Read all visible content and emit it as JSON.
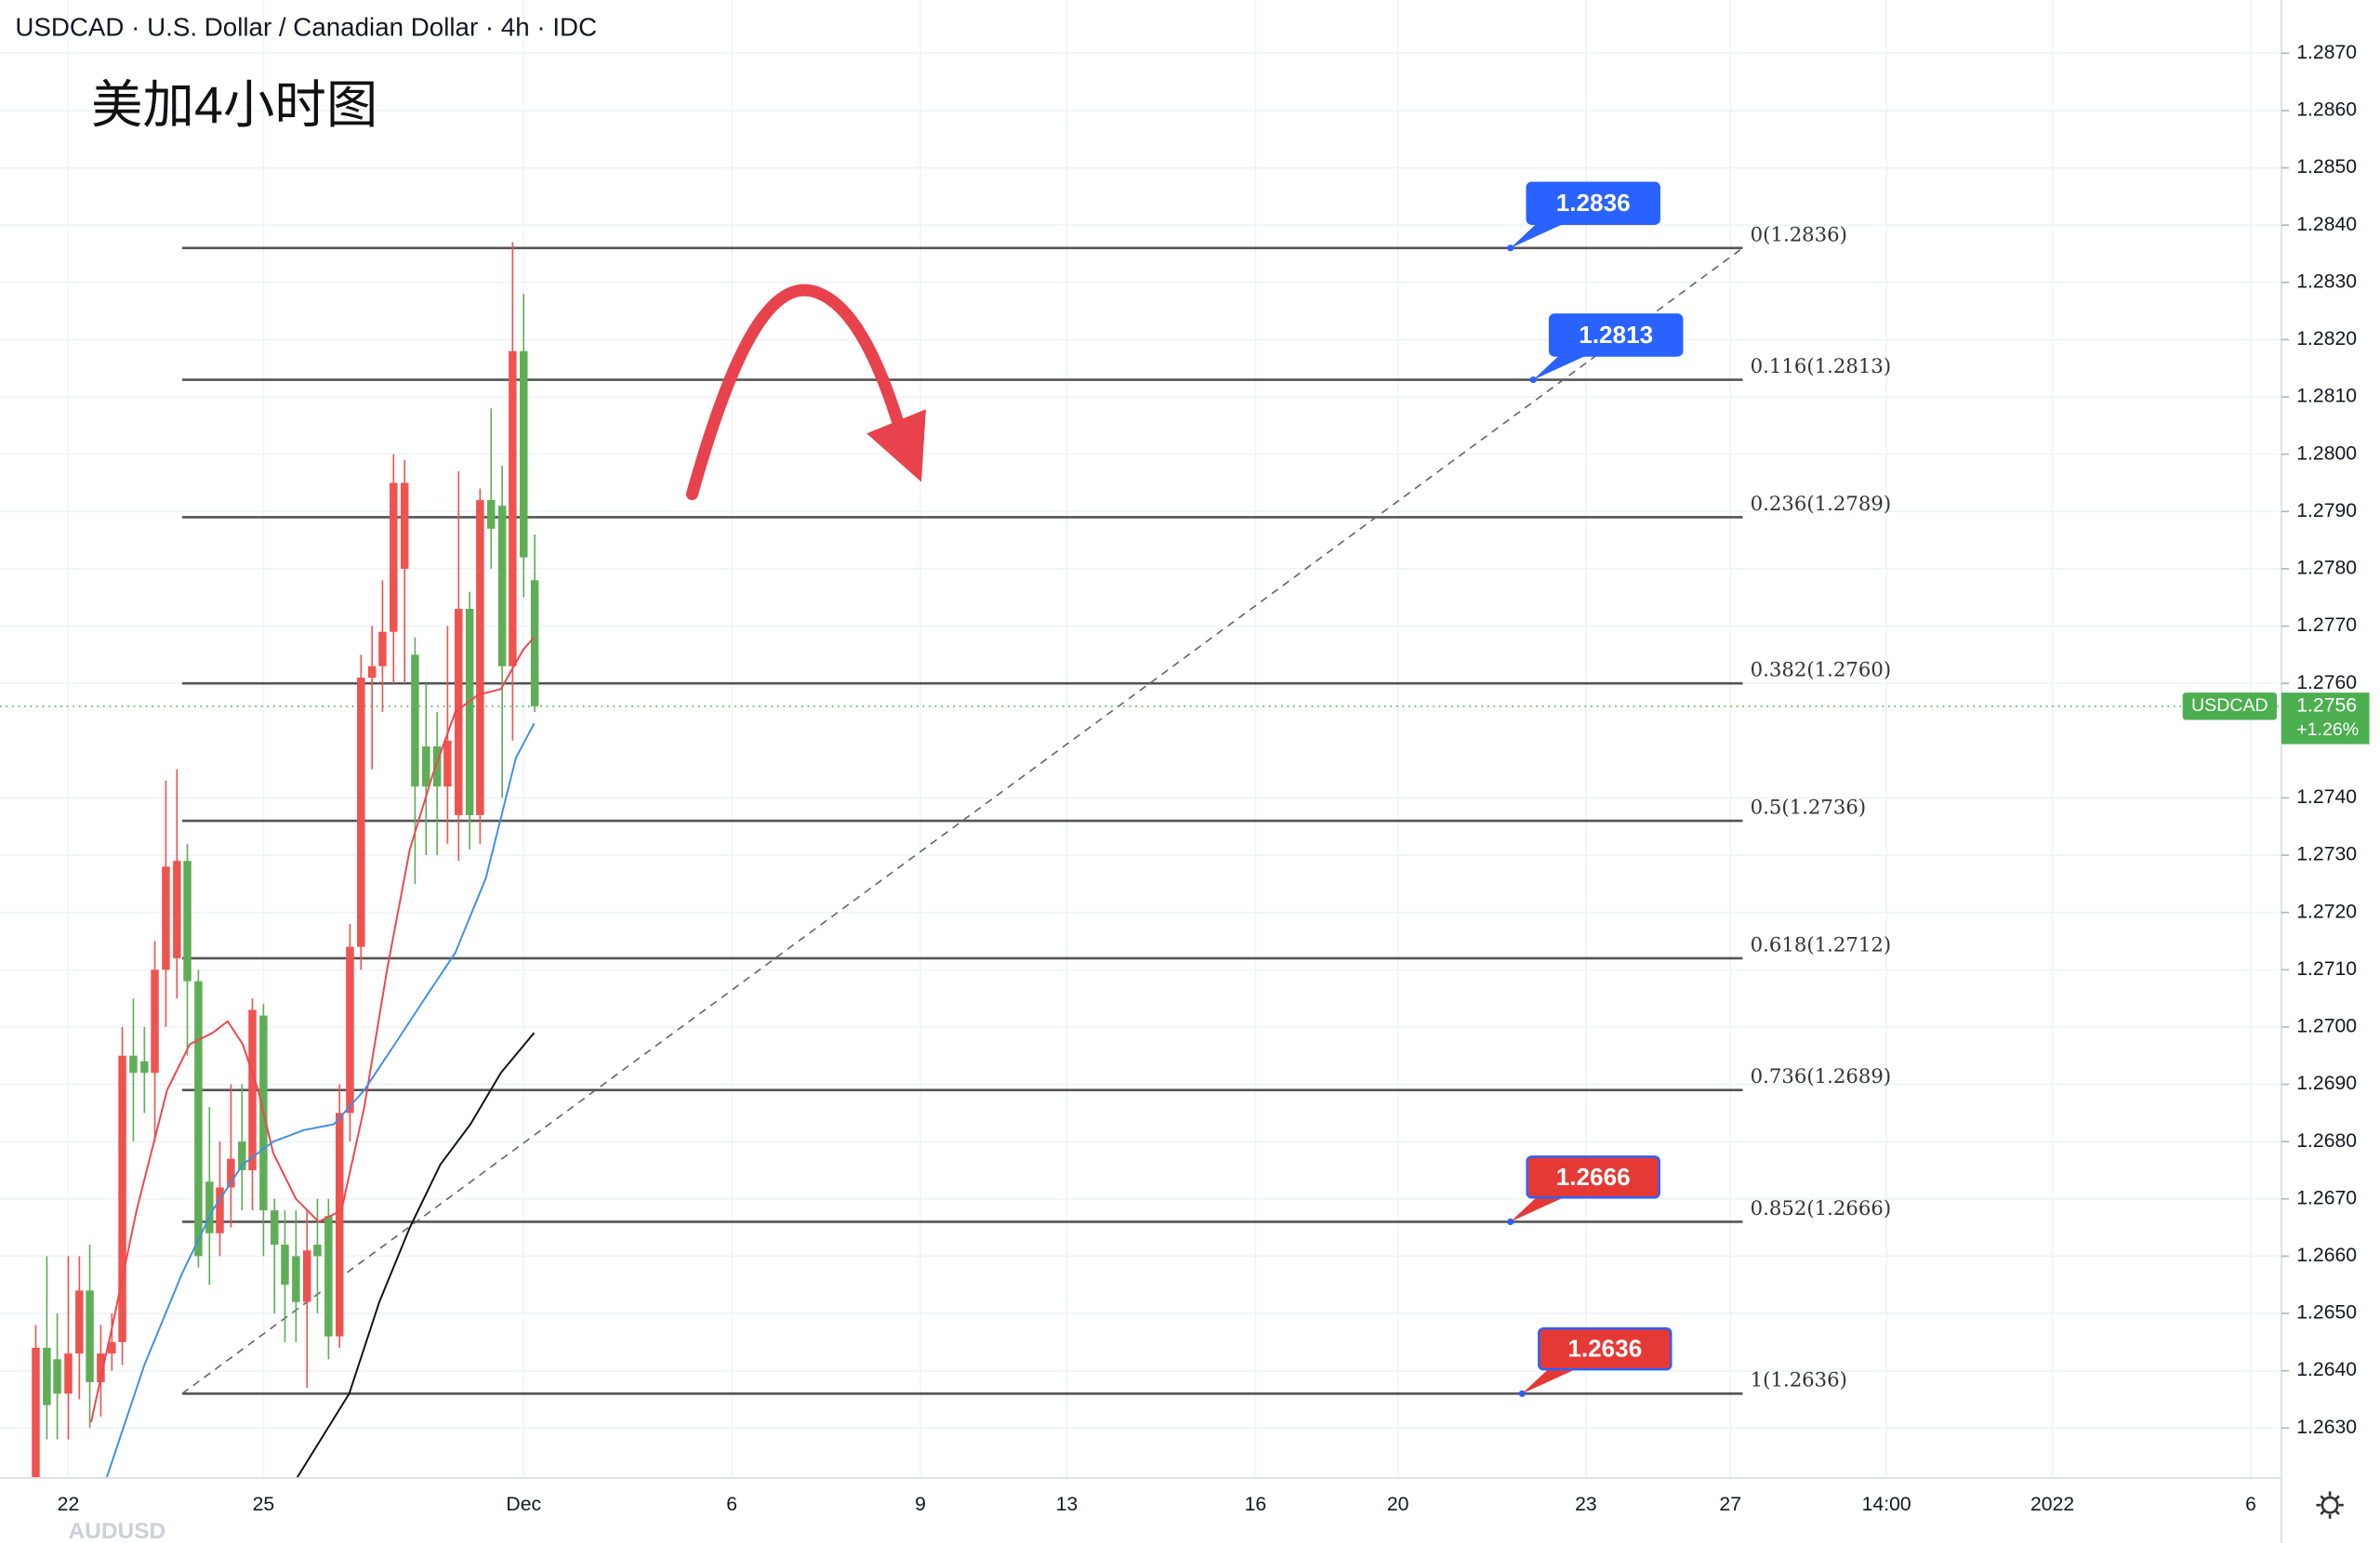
{
  "chart_data": {
    "type": "candlestick",
    "title": "USDCAD · U.S. Dollar / Canadian Dollar · 4h · IDC",
    "annotation": "美加4小时图",
    "footer_symbol": "AUDUSD",
    "xlim": [
      -1.05,
      34.02
    ],
    "ylim": [
      1.26213,
      1.28793
    ],
    "xticks": [
      {
        "value": 0,
        "label": "22"
      },
      {
        "value": 3,
        "label": "25"
      },
      {
        "value": 7,
        "label": "Dec"
      },
      {
        "value": 10.2,
        "label": "6"
      },
      {
        "value": 13.1,
        "label": "9"
      },
      {
        "value": 15.35,
        "label": "13"
      },
      {
        "value": 18.25,
        "label": "16"
      },
      {
        "value": 20.44,
        "label": "20"
      },
      {
        "value": 23.33,
        "label": "23"
      },
      {
        "value": 25.55,
        "label": "27"
      },
      {
        "value": 27.95,
        "label": "14:00"
      },
      {
        "value": 30.5,
        "label": "2022"
      },
      {
        "value": 33.55,
        "label": "6"
      }
    ],
    "yticks": [
      {
        "value": 1.263,
        "label": "1.2630"
      },
      {
        "value": 1.264,
        "label": "1.2640"
      },
      {
        "value": 1.265,
        "label": "1.2650"
      },
      {
        "value": 1.266,
        "label": "1.2660"
      },
      {
        "value": 1.267,
        "label": "1.2670"
      },
      {
        "value": 1.268,
        "label": "1.2680"
      },
      {
        "value": 1.269,
        "label": "1.2690"
      },
      {
        "value": 1.27,
        "label": "1.2700"
      },
      {
        "value": 1.271,
        "label": "1.2710"
      },
      {
        "value": 1.272,
        "label": "1.2720"
      },
      {
        "value": 1.273,
        "label": "1.2730"
      },
      {
        "value": 1.274,
        "label": "1.2740"
      },
      {
        "value": 1.276,
        "label": "1.2760"
      },
      {
        "value": 1.277,
        "label": "1.2770"
      },
      {
        "value": 1.278,
        "label": "1.2780"
      },
      {
        "value": 1.279,
        "label": "1.2790"
      },
      {
        "value": 1.28,
        "label": "1.2800"
      },
      {
        "value": 1.281,
        "label": "1.2810"
      },
      {
        "value": 1.282,
        "label": "1.2820"
      },
      {
        "value": 1.283,
        "label": "1.2830"
      },
      {
        "value": 1.284,
        "label": "1.2840"
      },
      {
        "value": 1.285,
        "label": "1.2850"
      },
      {
        "value": 1.286,
        "label": "1.2860"
      },
      {
        "value": 1.287,
        "label": "1.2870"
      }
    ],
    "grid": true,
    "up_color": "#ef5350",
    "down_color": "#5fae57",
    "x": [
      -0.5,
      -0.33,
      -0.17,
      0,
      0.17,
      0.33,
      0.5,
      0.67,
      0.83,
      1,
      1.17,
      1.33,
      1.5,
      1.67,
      1.83,
      2,
      2.17,
      2.33,
      2.5,
      2.67,
      2.83,
      3,
      3.17,
      3.33,
      3.5,
      3.67,
      3.83,
      4,
      4.17,
      4.33,
      4.5,
      4.67,
      4.83,
      5,
      5.17,
      5.33,
      5.5,
      5.67,
      5.83,
      6,
      6.17,
      6.33,
      6.5,
      6.67,
      6.83,
      7,
      7.17
    ],
    "open": [
      1.2621,
      1.2644,
      1.2642,
      1.2636,
      1.2643,
      1.2654,
      1.2638,
      1.2643,
      1.2645,
      1.2695,
      1.2694,
      1.2692,
      1.271,
      1.2712,
      1.2729,
      1.2708,
      1.2673,
      1.2664,
      1.2672,
      1.268,
      1.2675,
      1.2702,
      1.2668,
      1.2662,
      1.266,
      1.2652,
      1.2662,
      1.2667,
      1.2646,
      1.2685,
      1.2714,
      1.2761,
      1.2763,
      1.2769,
      1.278,
      1.2765,
      1.2749,
      1.2749,
      1.2742,
      1.2737,
      1.2773,
      1.2737,
      1.2792,
      1.2791,
      1.2763,
      1.2818,
      1.2778
    ],
    "high": [
      1.2648,
      1.266,
      1.265,
      1.266,
      1.266,
      1.2662,
      1.2648,
      1.265,
      1.27,
      1.2705,
      1.27,
      1.2715,
      1.2743,
      1.2745,
      1.2732,
      1.271,
      1.2686,
      1.268,
      1.269,
      1.269,
      1.2705,
      1.2704,
      1.267,
      1.2668,
      1.2668,
      1.2668,
      1.267,
      1.267,
      1.269,
      1.2718,
      1.2765,
      1.277,
      1.2778,
      1.28,
      1.2799,
      1.2768,
      1.276,
      1.2755,
      1.277,
      1.2797,
      1.2776,
      1.2794,
      1.2808,
      1.2798,
      1.2837,
      1.2828,
      1.2786
    ],
    "low": [
      1.262,
      1.2628,
      1.2628,
      1.2628,
      1.2635,
      1.263,
      1.2632,
      1.264,
      1.2641,
      1.268,
      1.2685,
      1.268,
      1.27,
      1.2705,
      1.2695,
      1.2658,
      1.2655,
      1.266,
      1.2665,
      1.2668,
      1.2668,
      1.266,
      1.265,
      1.2645,
      1.2645,
      1.2637,
      1.265,
      1.2642,
      1.2644,
      1.268,
      1.271,
      1.2745,
      1.2755,
      1.276,
      1.276,
      1.2725,
      1.273,
      1.273,
      1.2732,
      1.2729,
      1.2731,
      1.2732,
      1.278,
      1.274,
      1.275,
      1.2775,
      1.2755
    ],
    "close": [
      1.2644,
      1.2634,
      1.2636,
      1.2643,
      1.2654,
      1.2638,
      1.2643,
      1.2645,
      1.2695,
      1.2692,
      1.2692,
      1.271,
      1.2728,
      1.2729,
      1.2708,
      1.266,
      1.2664,
      1.2672,
      1.2677,
      1.2675,
      1.2703,
      1.2668,
      1.2662,
      1.2655,
      1.2652,
      1.2661,
      1.266,
      1.2646,
      1.2685,
      1.2714,
      1.2761,
      1.2763,
      1.2769,
      1.2795,
      1.2795,
      1.2742,
      1.2742,
      1.2742,
      1.275,
      1.2773,
      1.2737,
      1.2792,
      1.2787,
      1.2763,
      1.2818,
      1.2782,
      1.2756
    ],
    "lines": [
      {
        "color": "#f0454f",
        "x": [
          0.35,
          0.7,
          1.05,
          1.52,
          1.87,
          2.22,
          2.45,
          2.68,
          2.92,
          3.15,
          3.5,
          3.85,
          4.2,
          4.55,
          4.9,
          5.25,
          5.6,
          5.95,
          6.3,
          6.65,
          7.0,
          7.16
        ],
        "values": [
          1.2631,
          1.2649,
          1.2668,
          1.2689,
          1.2697,
          1.2699,
          1.2701,
          1.2697,
          1.2689,
          1.2678,
          1.267,
          1.2666,
          1.2668,
          1.2686,
          1.271,
          1.2731,
          1.2744,
          1.2755,
          1.2758,
          1.2759,
          1.2766,
          1.2768
        ]
      },
      {
        "color": "#3f8fe3",
        "x": [
          0.58,
          1.17,
          1.75,
          2.22,
          2.68,
          3.15,
          3.62,
          4.08,
          4.55,
          5.02,
          5.48,
          5.95,
          6.42,
          6.88,
          7.16
        ],
        "values": [
          1.2621,
          1.2641,
          1.2657,
          1.2668,
          1.2676,
          1.268,
          1.2682,
          1.2683,
          1.2689,
          1.2697,
          1.2705,
          1.2713,
          1.2726,
          1.2747,
          1.2753
        ]
      },
      {
        "color": "#111111",
        "x": [
          3.5,
          4.32,
          4.78,
          5.25,
          5.72,
          6.18,
          6.65,
          7.16
        ],
        "values": [
          1.2621,
          1.2636,
          1.2652,
          1.2665,
          1.2676,
          1.2683,
          1.2692,
          1.2699
        ]
      }
    ],
    "fib_xlim": [
      1.75,
      25.74
    ],
    "fib_levels": [
      {
        "price": 1.2836,
        "label": "0(1.2836)"
      },
      {
        "price": 1.2813,
        "label": "0.116(1.2813)"
      },
      {
        "price": 1.2789,
        "label": "0.236(1.2789)"
      },
      {
        "price": 1.276,
        "label": "0.382(1.2760)"
      },
      {
        "price": 1.2736,
        "label": "0.5(1.2736)"
      },
      {
        "price": 1.2712,
        "label": "0.618(1.2712)"
      },
      {
        "price": 1.2689,
        "label": "0.736(1.2689)"
      },
      {
        "price": 1.2666,
        "label": "0.852(1.2666)"
      },
      {
        "price": 1.2636,
        "label": "1(1.2636)"
      }
    ],
    "callouts": [
      {
        "label": "1.2836",
        "price": 1.2836,
        "x": 22.17,
        "color": "#2962ff"
      },
      {
        "label": "1.2813",
        "price": 1.2813,
        "x": 22.52,
        "color": "#2962ff"
      },
      {
        "label": "1.2666",
        "price": 1.2666,
        "x": 22.17,
        "color": "#e53935"
      },
      {
        "label": "1.2636",
        "price": 1.2636,
        "x": 22.35,
        "color": "#e53935"
      }
    ],
    "last": {
      "symbol": "USDCAD",
      "price": 1.2756,
      "change": "+1.26%",
      "color": "#4caf50"
    }
  }
}
